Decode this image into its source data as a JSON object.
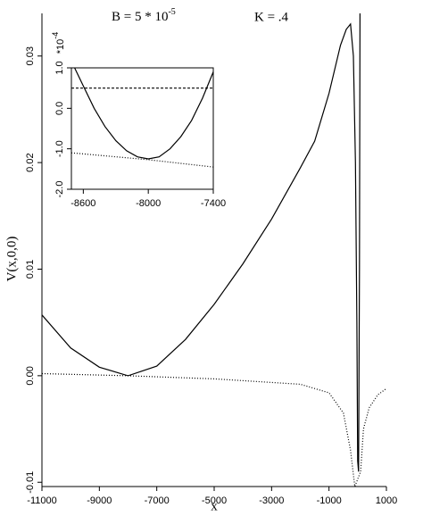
{
  "chart_data": [
    {
      "type": "line",
      "title": "B = 5 * 10",
      "title_exponent": "-5",
      "annotation": "K = .4",
      "x_label": "x",
      "y_label": "V(x,0,0)",
      "xlim": [
        -11000,
        1000
      ],
      "ylim": [
        -0.0104,
        0.034
      ],
      "xticks": [
        -11000,
        -9000,
        -7000,
        -5000,
        -3000,
        -1000,
        1000
      ],
      "yticks": [
        -0.01,
        {
          "value": 0,
          "label": "0.00"
        },
        0.01,
        0.02,
        0.03
      ],
      "series": [
        {
          "color": "#000000",
          "style": "solid",
          "x": [
            -11000,
            -10000,
            -9000,
            -8000,
            -7000,
            -6000,
            -5000,
            -4000,
            -3000,
            -2000,
            -1500,
            -1000,
            -600,
            -400,
            -250,
            -150,
            -80,
            -30,
            0,
            30,
            60,
            80
          ],
          "values": [
            0.0057,
            0.0026,
            0.0008,
            0,
            0.0009,
            0.0034,
            0.0067,
            0.0105,
            0.0147,
            0.0195,
            0.022,
            0.0265,
            0.031,
            0.0325,
            0.033,
            0.03,
            0.02,
            0.005,
            -0.008,
            -0.009,
            0.01,
            0.034
          ]
        },
        {
          "color": "#000000",
          "style": "dotted",
          "x": [
            -11000,
            -8000,
            -5000,
            -2000,
            -1000,
            -500,
            -250,
            -100,
            100,
            200,
            400,
            700,
            1000
          ],
          "values": [
            0.0002,
            0,
            -0.0003,
            -0.0008,
            -0.0016,
            -0.0035,
            -0.007,
            -0.0104,
            -0.009,
            -0.005,
            -0.003,
            -0.0018,
            -0.0012
          ]
        }
      ]
    },
    {
      "type": "line",
      "y_multiplier": "*10",
      "y_multiplier_exponent": "-4",
      "xlim": [
        -8710,
        -7400
      ],
      "ylim": [
        -2,
        1
      ],
      "xticks": [
        -8600,
        -8000,
        -7400
      ],
      "yticks": [
        {
          "value": 1,
          "label": "1.0"
        },
        {
          "value": 0,
          "label": "0.0"
        },
        {
          "value": -1,
          "label": "-1.0"
        },
        {
          "value": -2,
          "label": "-2.0"
        }
      ],
      "series": [
        {
          "color": "#000000",
          "style": "solid",
          "x": [
            -8680,
            -8600,
            -8500,
            -8400,
            -8300,
            -8200,
            -8100,
            -8000,
            -7900,
            -7800,
            -7700,
            -7600,
            -7500,
            -7400
          ],
          "values": [
            1.0,
            0.55,
            0.0,
            -0.45,
            -0.8,
            -1.05,
            -1.2,
            -1.25,
            -1.2,
            -1.0,
            -0.7,
            -0.3,
            0.25,
            0.9
          ]
        },
        {
          "color": "#000000",
          "style": "dashed",
          "x": [
            -8710,
            -7400
          ],
          "values": [
            0.5,
            0.5
          ]
        },
        {
          "color": "#000000",
          "style": "dotted",
          "x": [
            -8710,
            -8000,
            -7400
          ],
          "values": [
            -1.1,
            -1.27,
            -1.45
          ]
        }
      ]
    }
  ]
}
